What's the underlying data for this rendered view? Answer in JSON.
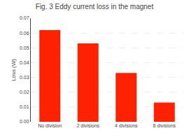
{
  "chart_data": {
    "type": "bar",
    "title": "Fig. 3 Eddy current loss in the magnet",
    "categories": [
      "No division",
      "2 divisions",
      "4 divisions",
      "8 divisions"
    ],
    "values": [
      0.062,
      0.053,
      0.033,
      0.013
    ],
    "color": "#ff2200",
    "ylabel": "Loss (W)",
    "ylim": [
      0.0,
      0.07
    ],
    "yticks": [
      {
        "value": 0,
        "label": "0.00"
      },
      0.01,
      0.02,
      0.03,
      0.04,
      0.05,
      0.06,
      0.07
    ],
    "grid": true
  }
}
